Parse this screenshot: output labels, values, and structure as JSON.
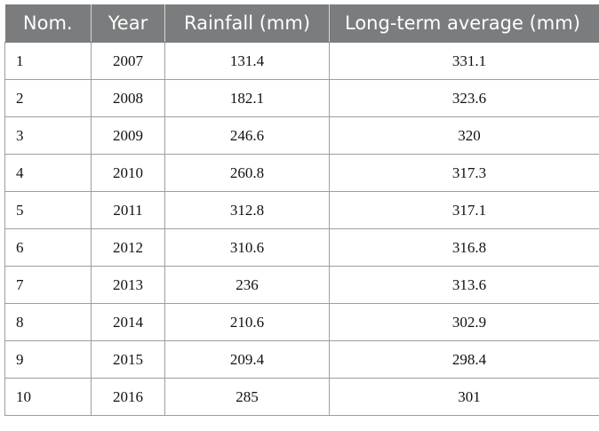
{
  "table": {
    "headers": [
      "Nom.",
      "Year",
      "Rainfall (mm)",
      "Long-term average (mm)"
    ],
    "rows": [
      [
        "1",
        "2007",
        "131.4",
        "331.1"
      ],
      [
        "2",
        "2008",
        "182.1",
        "323.6"
      ],
      [
        "3",
        "2009",
        "246.6",
        "320"
      ],
      [
        "4",
        "2010",
        "260.8",
        "317.3"
      ],
      [
        "5",
        "2011",
        "312.8",
        "317.1"
      ],
      [
        "6",
        "2012",
        "310.6",
        "316.8"
      ],
      [
        "7",
        "2013",
        "236",
        "313.6"
      ],
      [
        "8",
        "2014",
        "210.6",
        "302.9"
      ],
      [
        "9",
        "2015",
        "209.4",
        "298.4"
      ],
      [
        "10",
        "2016",
        "285",
        "301"
      ]
    ]
  }
}
